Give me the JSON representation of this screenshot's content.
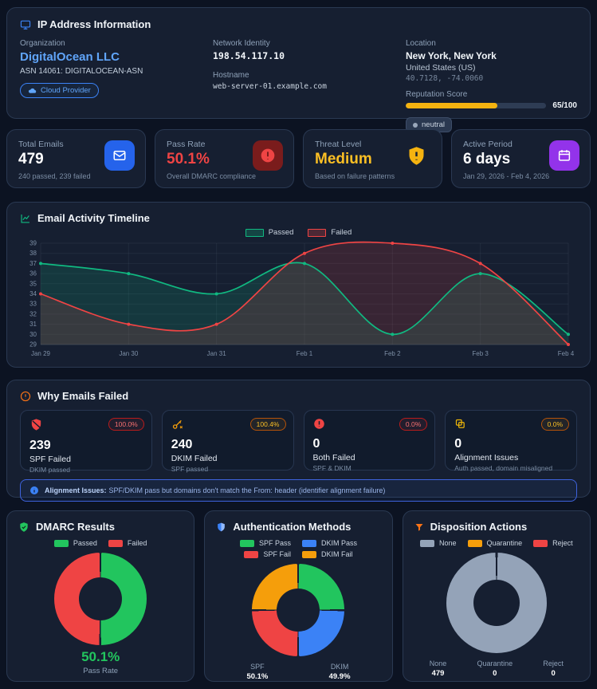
{
  "ip_panel": {
    "title": "IP Address Information",
    "organization": {
      "label": "Organization",
      "name": "DigitalOcean LLC",
      "asn": "ASN 14061: DIGITALOCEAN-ASN",
      "badge": "Cloud Provider"
    },
    "network": {
      "label": "Network Identity",
      "ip": "198.54.117.10",
      "hostname_label": "Hostname",
      "hostname": "web-server-01.example.com"
    },
    "location": {
      "label": "Location",
      "city": "New York, New York",
      "country": "United States (US)",
      "coordinates": "40.7128, -74.0060",
      "reputation_label": "Reputation Score",
      "reputation_value": "65/100",
      "reputation_pct": 65,
      "status_badge": "neutral"
    }
  },
  "stats": [
    {
      "label": "Total Emails",
      "value": "479",
      "sub": "240 passed, 239 failed",
      "icon": "mail-icon",
      "accent": "#2563eb"
    },
    {
      "label": "Pass Rate",
      "value": "50.1%",
      "sub": "Overall DMARC compliance",
      "icon": "alert-circle-icon",
      "accent": "#ef4444"
    },
    {
      "label": "Threat Level",
      "value": "Medium",
      "sub": "Based on failure patterns",
      "icon": "shield-alert-icon",
      "accent": "#f5b310"
    },
    {
      "label": "Active Period",
      "value": "6 days",
      "sub": "Jan 29, 2026 - Feb 4, 2026",
      "icon": "calendar-icon",
      "accent": "#9333ea"
    }
  ],
  "failures": {
    "title": "Why Emails Failed",
    "cards": [
      {
        "badge": "100.0%",
        "value": "239",
        "label": "SPF Failed",
        "sub": "DKIM passed",
        "icon": "shield-slash-icon"
      },
      {
        "badge": "100.4%",
        "value": "240",
        "label": "DKIM Failed",
        "sub": "SPF passed",
        "icon": "key-icon"
      },
      {
        "badge": "0.0%",
        "value": "0",
        "label": "Both Failed",
        "sub": "SPF & DKIM",
        "icon": "alert-circle-icon"
      },
      {
        "badge": "0.0%",
        "value": "0",
        "label": "Alignment Issues",
        "sub": "Auth passed, domain misaligned",
        "icon": "copy-icon"
      }
    ],
    "note_title": "Alignment Issues:",
    "note_text": "SPF/DKIM pass but domains don't match the From: header (identifier alignment failure)"
  },
  "chart_data": [
    {
      "type": "line",
      "title": "Email Activity Timeline",
      "x": [
        "Jan 29",
        "Jan 30",
        "Jan 31",
        "Feb 1",
        "Feb 2",
        "Feb 3",
        "Feb 4"
      ],
      "series": [
        {
          "name": "Passed",
          "color": "#10b981",
          "values": [
            37,
            36,
            34,
            37,
            30,
            36,
            30
          ]
        },
        {
          "name": "Failed",
          "color": "#ef4444",
          "values": [
            34,
            31,
            31,
            38,
            39,
            37,
            29
          ]
        }
      ],
      "ylim": [
        29,
        39
      ],
      "grid": true,
      "legend_position": "top"
    },
    {
      "type": "pie",
      "title": "DMARC Results",
      "labels": [
        "Passed",
        "Failed"
      ],
      "values": [
        240,
        239
      ],
      "colors": [
        "#22c55e",
        "#ef4444"
      ],
      "footer_big": {
        "value": "50.1%",
        "caption": "Pass Rate",
        "color": "#22c55e"
      }
    },
    {
      "type": "pie",
      "title": "Authentication Methods",
      "labels": [
        "SPF Pass",
        "DKIM Pass",
        "SPF Fail",
        "DKIM Fail"
      ],
      "values": [
        240,
        239,
        239,
        240
      ],
      "colors": [
        "#22c55e",
        "#3b82f6",
        "#ef4444",
        "#f59e0b"
      ],
      "footer_cols": [
        {
          "label": "SPF",
          "value": "50.1%"
        },
        {
          "label": "DKIM",
          "value": "49.9%"
        }
      ]
    },
    {
      "type": "pie",
      "title": "Disposition Actions",
      "labels": [
        "None",
        "Quarantine",
        "Reject"
      ],
      "values": [
        479,
        0,
        0
      ],
      "colors": [
        "#94a3b8",
        "#f59e0b",
        "#ef4444"
      ],
      "footer_cols": [
        {
          "label": "None",
          "value": "479"
        },
        {
          "label": "Quarantine",
          "value": "0"
        },
        {
          "label": "Reject",
          "value": "0"
        }
      ]
    }
  ]
}
